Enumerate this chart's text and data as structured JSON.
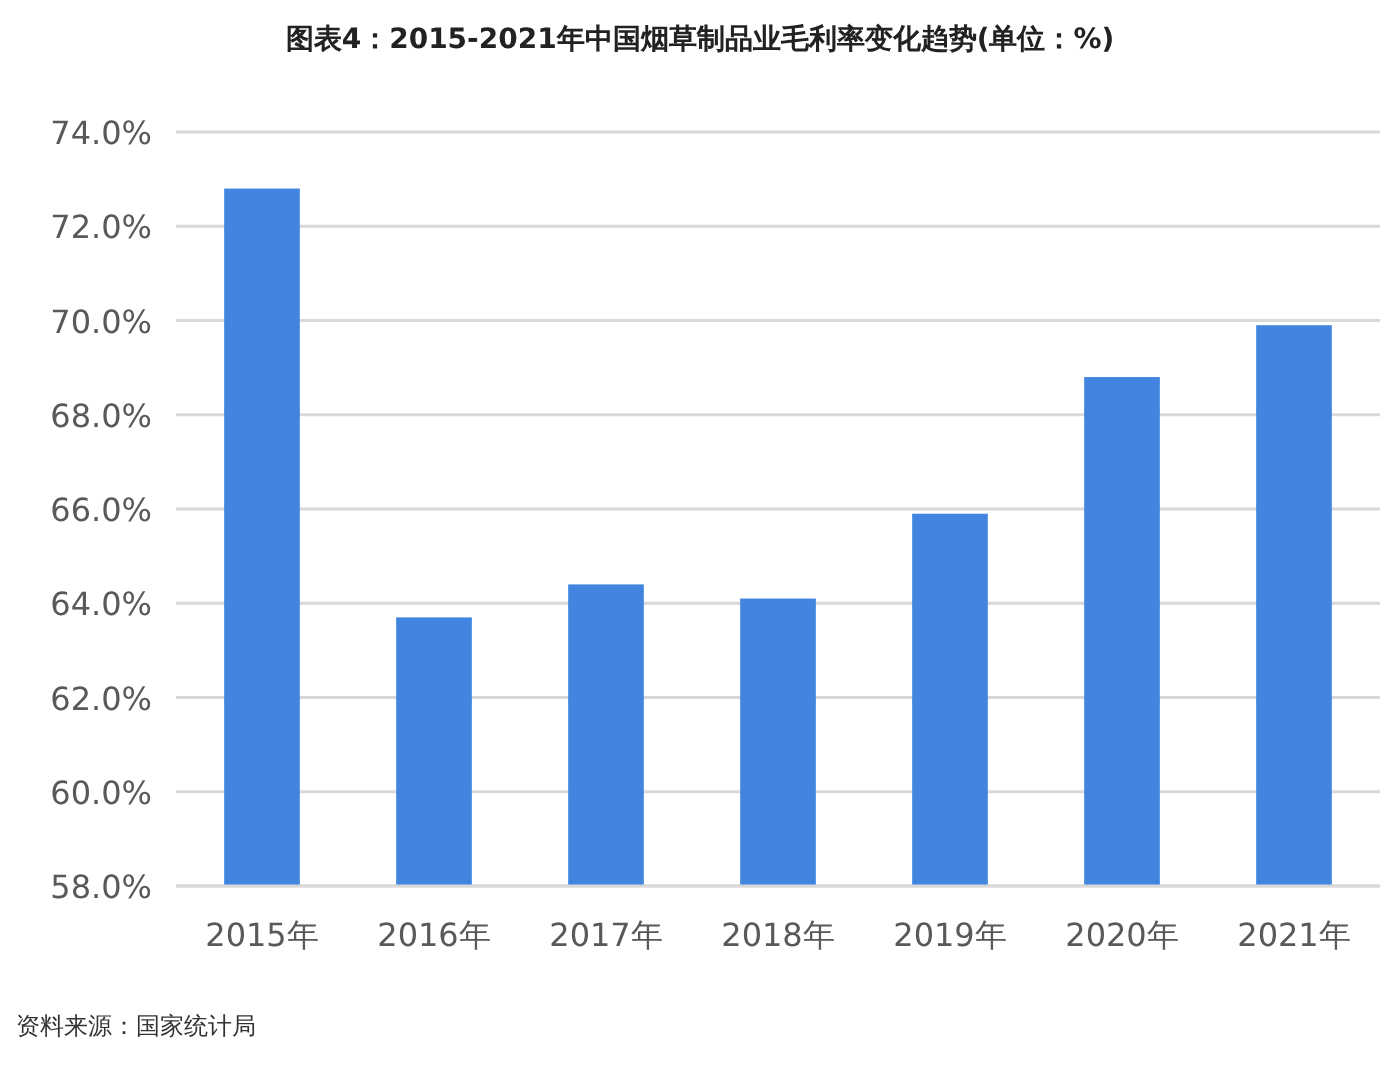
{
  "chart_data": {
    "type": "bar",
    "title": "图表4：2015-2021年中国烟草制品业毛利率变化趋势(单位：%)",
    "categories": [
      "2015年",
      "2016年",
      "2017年",
      "2018年",
      "2019年",
      "2020年",
      "2021年"
    ],
    "series": [
      {
        "color": "#4285e0",
        "values": [
          72.8,
          63.7,
          64.4,
          64.1,
          65.9,
          68.8,
          69.9
        ]
      }
    ],
    "ylim": [
      58,
      74
    ],
    "yticks": [
      {
        "value": 58,
        "label": "58.0%"
      },
      {
        "value": 60,
        "label": "60.0%"
      },
      {
        "value": 62,
        "label": "62.0%"
      },
      {
        "value": 64,
        "label": "64.0%"
      },
      {
        "value": 66,
        "label": "66.0%"
      },
      {
        "value": 68,
        "label": "68.0%"
      },
      {
        "value": 70,
        "label": "70.0%"
      },
      {
        "value": 72,
        "label": "72.0%"
      },
      {
        "value": 74,
        "label": "74.0%"
      }
    ],
    "grid": "y",
    "annotations": [
      "资料来源：国家统计局"
    ]
  }
}
